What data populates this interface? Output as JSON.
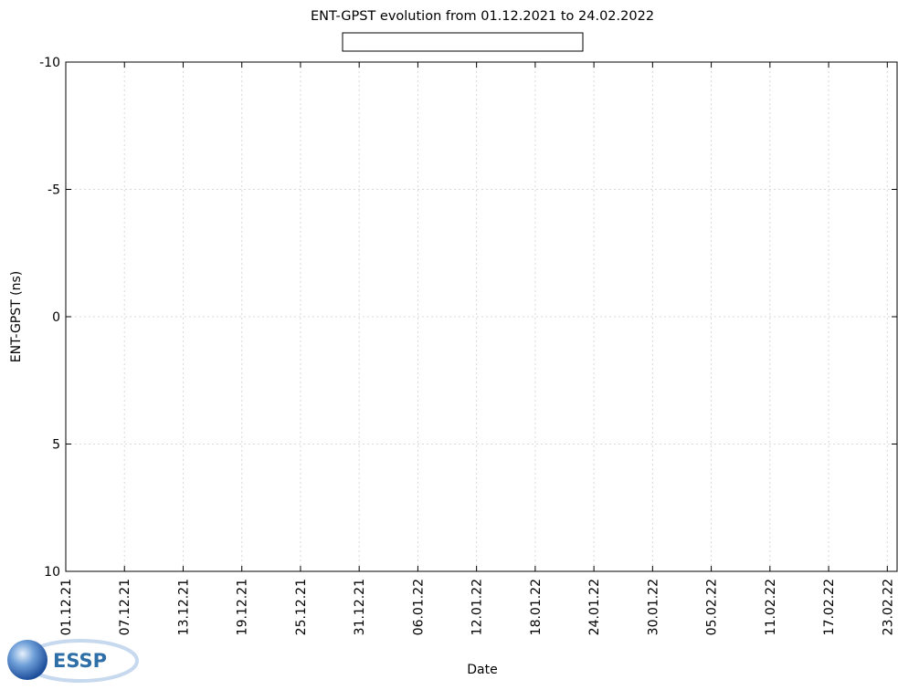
{
  "chart_data": {
    "type": "line",
    "title": "ENT-GPST evolution from 01.12.2021 to 24.02.2022",
    "xlabel": "Date",
    "ylabel": "ENT-GPST (ns)",
    "x_range": [
      "01.12.21",
      "24.02.22"
    ],
    "x_ticks": [
      "01.12.21",
      "07.12.21",
      "13.12.21",
      "19.12.21",
      "25.12.21",
      "31.12.21",
      "06.01.22",
      "12.01.22",
      "18.01.22",
      "24.01.22",
      "30.01.22",
      "05.02.22",
      "11.02.22",
      "17.02.22",
      "23.02.22"
    ],
    "ylim": [
      10,
      -10
    ],
    "y_reversed": true,
    "y_ticks": [
      -10,
      -5,
      0,
      5,
      10
    ],
    "grid": true,
    "legend": "top-center",
    "series": []
  },
  "logo": {
    "text": "ESSP"
  },
  "colors": {
    "axis": "#000000",
    "grid": "#d9d9d9",
    "logo_blue": "#2c66b3",
    "logo_text": "#2f6fa8"
  }
}
